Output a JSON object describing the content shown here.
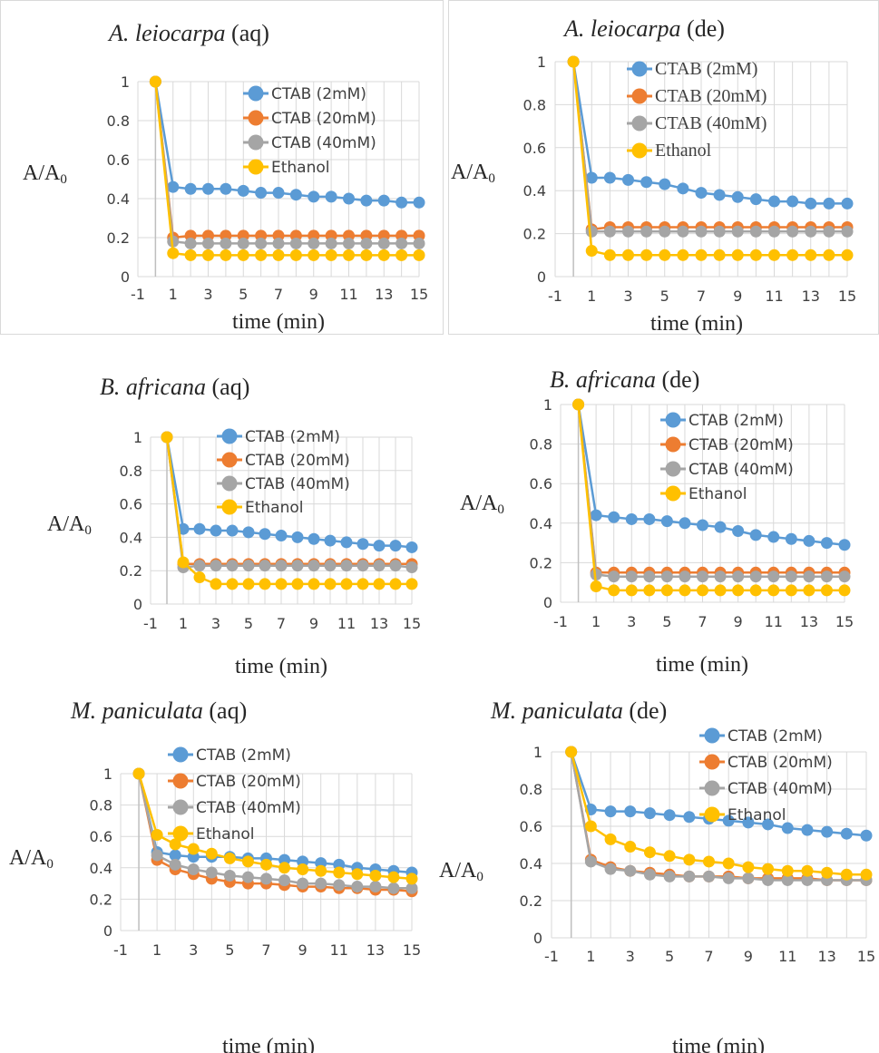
{
  "colors": {
    "CTAB (2mM)": "#5b9bd5",
    "CTAB (20mM)": "#ed7d31",
    "CTAB (40mM)": "#a5a5a5",
    "Ethanol": "#ffc000"
  },
  "chart_data": [
    {
      "type": "line",
      "title_italic": "A. leiocarpa",
      "title_rest": " (aq)",
      "xlabel": "time (min)",
      "ylabel": "A/A0",
      "ylabel_main": "A/A",
      "ylabel_sub": "0",
      "xlim": [
        -1,
        15
      ],
      "ylim": [
        0,
        1
      ],
      "xticks": [
        "-1",
        "1",
        "3",
        "5",
        "7",
        "9",
        "11",
        "13",
        "15"
      ],
      "yticks": [
        "0",
        "0.2",
        "0.4",
        "0.6",
        "0.8",
        "1"
      ],
      "legend": "top-right",
      "x": [
        0,
        1,
        2,
        3,
        4,
        5,
        6,
        7,
        8,
        9,
        10,
        11,
        12,
        13,
        14,
        15
      ],
      "series": [
        {
          "name": "CTAB (2mM)",
          "values": [
            1,
            0.46,
            0.45,
            0.45,
            0.45,
            0.44,
            0.43,
            0.43,
            0.42,
            0.41,
            0.41,
            0.4,
            0.39,
            0.39,
            0.38,
            0.38
          ]
        },
        {
          "name": "CTAB (20mM)",
          "values": [
            1,
            0.2,
            0.21,
            0.21,
            0.21,
            0.21,
            0.21,
            0.21,
            0.21,
            0.21,
            0.21,
            0.21,
            0.21,
            0.21,
            0.21,
            0.21
          ]
        },
        {
          "name": "CTAB (40mM)",
          "values": [
            1,
            0.18,
            0.17,
            0.17,
            0.17,
            0.17,
            0.17,
            0.17,
            0.17,
            0.17,
            0.17,
            0.17,
            0.17,
            0.17,
            0.17,
            0.17
          ]
        },
        {
          "name": "Ethanol",
          "values": [
            1,
            0.12,
            0.11,
            0.11,
            0.11,
            0.11,
            0.11,
            0.11,
            0.11,
            0.11,
            0.11,
            0.11,
            0.11,
            0.11,
            0.11,
            0.11
          ]
        }
      ]
    },
    {
      "type": "line",
      "title_italic": "A. leiocarpa",
      "title_rest": " (de)",
      "xlabel": "time (min)",
      "ylabel": "A/A0",
      "ylabel_main": "A/A",
      "ylabel_sub": "0",
      "xlim": [
        -1,
        15
      ],
      "ylim": [
        0,
        1
      ],
      "xticks": [
        "-1",
        "1",
        "3",
        "5",
        "7",
        "9",
        "11",
        "13",
        "15"
      ],
      "yticks": [
        "0",
        "0.2",
        "0.4",
        "0.6",
        "0.8",
        "1"
      ],
      "legend": "top-right",
      "x": [
        0,
        1,
        2,
        3,
        4,
        5,
        6,
        7,
        8,
        9,
        10,
        11,
        12,
        13,
        14,
        15
      ],
      "series": [
        {
          "name": "CTAB (2mM)",
          "values": [
            1,
            0.46,
            0.46,
            0.45,
            0.44,
            0.43,
            0.41,
            0.39,
            0.38,
            0.37,
            0.36,
            0.35,
            0.35,
            0.34,
            0.34,
            0.34
          ]
        },
        {
          "name": "CTAB (20mM)",
          "values": [
            1,
            0.22,
            0.23,
            0.23,
            0.23,
            0.23,
            0.23,
            0.23,
            0.23,
            0.23,
            0.23,
            0.23,
            0.23,
            0.23,
            0.23,
            0.23
          ]
        },
        {
          "name": "CTAB (40mM)",
          "values": [
            1,
            0.21,
            0.21,
            0.21,
            0.21,
            0.21,
            0.21,
            0.21,
            0.21,
            0.21,
            0.21,
            0.21,
            0.21,
            0.21,
            0.21,
            0.21
          ]
        },
        {
          "name": "Ethanol",
          "values": [
            1,
            0.12,
            0.1,
            0.1,
            0.1,
            0.1,
            0.1,
            0.1,
            0.1,
            0.1,
            0.1,
            0.1,
            0.1,
            0.1,
            0.1,
            0.1
          ]
        }
      ]
    },
    {
      "type": "line",
      "title_italic": "B. africana",
      "title_rest": " (aq)",
      "xlabel": "time (min)",
      "ylabel": "A/A0",
      "ylabel_main": "A/A",
      "ylabel_sub": "0",
      "xlim": [
        -1,
        15
      ],
      "ylim": [
        0,
        1
      ],
      "xticks": [
        "-1",
        "1",
        "3",
        "5",
        "7",
        "9",
        "11",
        "13",
        "15"
      ],
      "yticks": [
        "0",
        "0.2",
        "0.4",
        "0.6",
        "0.8",
        "1"
      ],
      "legend": "top-right",
      "x": [
        0,
        1,
        2,
        3,
        4,
        5,
        6,
        7,
        8,
        9,
        10,
        11,
        12,
        13,
        14,
        15
      ],
      "series": [
        {
          "name": "CTAB (2mM)",
          "values": [
            1,
            0.45,
            0.45,
            0.44,
            0.44,
            0.43,
            0.42,
            0.41,
            0.4,
            0.39,
            0.38,
            0.37,
            0.36,
            0.35,
            0.35,
            0.34
          ]
        },
        {
          "name": "CTAB (20mM)",
          "values": [
            1,
            0.24,
            0.24,
            0.24,
            0.24,
            0.24,
            0.24,
            0.24,
            0.24,
            0.24,
            0.24,
            0.24,
            0.24,
            0.24,
            0.24,
            0.24
          ]
        },
        {
          "name": "CTAB (40mM)",
          "values": [
            1,
            0.22,
            0.23,
            0.23,
            0.23,
            0.23,
            0.23,
            0.23,
            0.23,
            0.23,
            0.23,
            0.23,
            0.23,
            0.23,
            0.23,
            0.22
          ]
        },
        {
          "name": "Ethanol",
          "values": [
            1,
            0.25,
            0.16,
            0.12,
            0.12,
            0.12,
            0.12,
            0.12,
            0.12,
            0.12,
            0.12,
            0.12,
            0.12,
            0.12,
            0.12,
            0.12
          ]
        }
      ]
    },
    {
      "type": "line",
      "title_italic": "B. africana",
      "title_rest": " (de)",
      "xlabel": "time (min)",
      "ylabel": "A/A0",
      "ylabel_main": "A/A",
      "ylabel_sub": "0",
      "xlim": [
        -1,
        15
      ],
      "ylim": [
        0,
        1
      ],
      "xticks": [
        "-1",
        "1",
        "3",
        "5",
        "7",
        "9",
        "11",
        "13",
        "15"
      ],
      "yticks": [
        "0",
        "0.2",
        "0.4",
        "0.6",
        "0.8",
        "1"
      ],
      "legend": "top-right",
      "x": [
        0,
        1,
        2,
        3,
        4,
        5,
        6,
        7,
        8,
        9,
        10,
        11,
        12,
        13,
        14,
        15
      ],
      "series": [
        {
          "name": "CTAB (2mM)",
          "values": [
            1,
            0.44,
            0.43,
            0.42,
            0.42,
            0.41,
            0.4,
            0.39,
            0.38,
            0.36,
            0.34,
            0.33,
            0.32,
            0.31,
            0.3,
            0.29
          ]
        },
        {
          "name": "CTAB (20mM)",
          "values": [
            1,
            0.15,
            0.15,
            0.15,
            0.15,
            0.15,
            0.15,
            0.15,
            0.15,
            0.15,
            0.15,
            0.15,
            0.15,
            0.15,
            0.15,
            0.15
          ]
        },
        {
          "name": "CTAB (40mM)",
          "values": [
            1,
            0.14,
            0.13,
            0.13,
            0.13,
            0.13,
            0.13,
            0.13,
            0.13,
            0.13,
            0.13,
            0.13,
            0.13,
            0.13,
            0.13,
            0.13
          ]
        },
        {
          "name": "Ethanol",
          "values": [
            1,
            0.08,
            0.06,
            0.06,
            0.06,
            0.06,
            0.06,
            0.06,
            0.06,
            0.06,
            0.06,
            0.06,
            0.06,
            0.06,
            0.06,
            0.06
          ]
        }
      ]
    },
    {
      "type": "line",
      "title_italic": "M. paniculata",
      "title_rest": " (aq)",
      "xlabel": "time (min)",
      "ylabel": "A/A0",
      "ylabel_main": "A/A",
      "ylabel_sub": "0",
      "xlim": [
        -1,
        15
      ],
      "ylim": [
        0,
        1
      ],
      "xticks": [
        "-1",
        "1",
        "3",
        "5",
        "7",
        "9",
        "11",
        "13",
        "15"
      ],
      "yticks": [
        "0",
        "0.2",
        "0.4",
        "0.6",
        "0.8",
        "1"
      ],
      "legend": "top-right",
      "x": [
        0,
        1,
        2,
        3,
        4,
        5,
        6,
        7,
        8,
        9,
        10,
        11,
        12,
        13,
        14,
        15
      ],
      "series": [
        {
          "name": "CTAB (2mM)",
          "values": [
            1,
            0.5,
            0.48,
            0.47,
            0.47,
            0.47,
            0.46,
            0.46,
            0.45,
            0.44,
            0.43,
            0.42,
            0.4,
            0.39,
            0.38,
            0.37
          ]
        },
        {
          "name": "CTAB (20mM)",
          "values": [
            1,
            0.45,
            0.39,
            0.36,
            0.33,
            0.31,
            0.3,
            0.3,
            0.29,
            0.28,
            0.28,
            0.27,
            0.27,
            0.26,
            0.26,
            0.25
          ]
        },
        {
          "name": "CTAB (40mM)",
          "values": [
            1,
            0.48,
            0.42,
            0.39,
            0.37,
            0.35,
            0.34,
            0.33,
            0.32,
            0.3,
            0.3,
            0.29,
            0.28,
            0.28,
            0.27,
            0.27
          ]
        },
        {
          "name": "Ethanol",
          "values": [
            1,
            0.61,
            0.55,
            0.52,
            0.49,
            0.46,
            0.44,
            0.42,
            0.4,
            0.39,
            0.38,
            0.37,
            0.36,
            0.35,
            0.34,
            0.33
          ]
        }
      ]
    },
    {
      "type": "line",
      "title_italic": "M. paniculata",
      "title_rest": " (de)",
      "xlabel": "time (min)",
      "ylabel": "A/A0",
      "ylabel_main": "A/A",
      "ylabel_sub": "0",
      "xlim": [
        -1,
        15
      ],
      "ylim": [
        0,
        1
      ],
      "xticks": [
        "-1",
        "1",
        "3",
        "5",
        "7",
        "9",
        "11",
        "13",
        "15"
      ],
      "yticks": [
        "0",
        "0.2",
        "0.4",
        "0.6",
        "0.8",
        "1"
      ],
      "legend": "top-right",
      "x": [
        0,
        1,
        2,
        3,
        4,
        5,
        6,
        7,
        8,
        9,
        10,
        11,
        12,
        13,
        14,
        15
      ],
      "series": [
        {
          "name": "CTAB (2mM)",
          "values": [
            1,
            0.69,
            0.68,
            0.68,
            0.67,
            0.66,
            0.65,
            0.64,
            0.63,
            0.62,
            0.61,
            0.59,
            0.58,
            0.57,
            0.56,
            0.55
          ]
        },
        {
          "name": "CTAB (20mM)",
          "values": [
            1,
            0.42,
            0.38,
            0.36,
            0.35,
            0.34,
            0.33,
            0.33,
            0.33,
            0.32,
            0.32,
            0.32,
            0.32,
            0.31,
            0.31,
            0.31
          ]
        },
        {
          "name": "CTAB (40mM)",
          "values": [
            1,
            0.41,
            0.37,
            0.36,
            0.34,
            0.33,
            0.33,
            0.33,
            0.32,
            0.32,
            0.31,
            0.31,
            0.31,
            0.31,
            0.31,
            0.31
          ]
        },
        {
          "name": "Ethanol",
          "values": [
            1,
            0.6,
            0.53,
            0.49,
            0.46,
            0.44,
            0.42,
            0.41,
            0.4,
            0.38,
            0.37,
            0.36,
            0.36,
            0.35,
            0.34,
            0.34
          ]
        }
      ]
    }
  ]
}
